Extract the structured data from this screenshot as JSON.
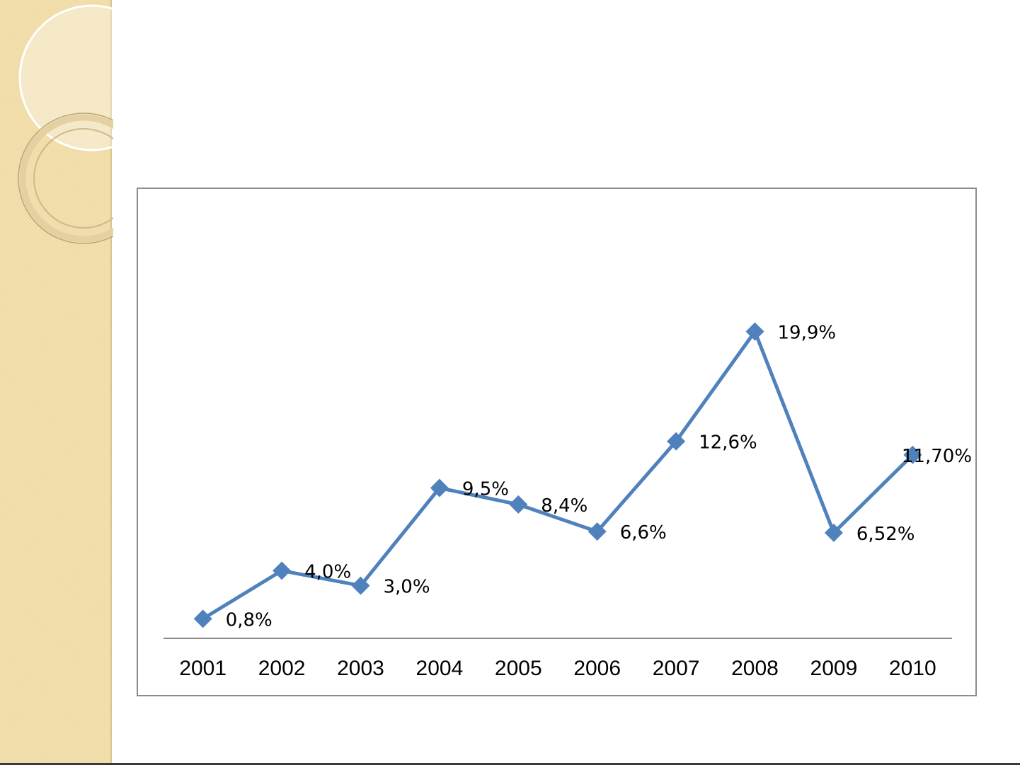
{
  "theme": {
    "accent": "#4f81bd",
    "side_panel": "#f2deaa",
    "frame_border": "#8c8c8c"
  },
  "chart_data": {
    "type": "line",
    "categories": [
      "2001",
      "2002",
      "2003",
      "2004",
      "2005",
      "2006",
      "2007",
      "2008",
      "2009",
      "2010"
    ],
    "series": [
      {
        "values": [
          0.8,
          4.0,
          3.0,
          9.5,
          8.4,
          6.6,
          12.6,
          19.9,
          6.52,
          11.7
        ],
        "labels": [
          "0,8%",
          "4,0%",
          "3,0%",
          "9,5%",
          "8,4%",
          "6,6%",
          "12,6%",
          "19,9%",
          "6,52%",
          "11,70%"
        ],
        "color": "#4f81bd",
        "marker": "diamond"
      }
    ],
    "ylim": [
      -0.5,
      27.5
    ],
    "grid": false,
    "legend": "none",
    "y_axis_visible": false
  }
}
